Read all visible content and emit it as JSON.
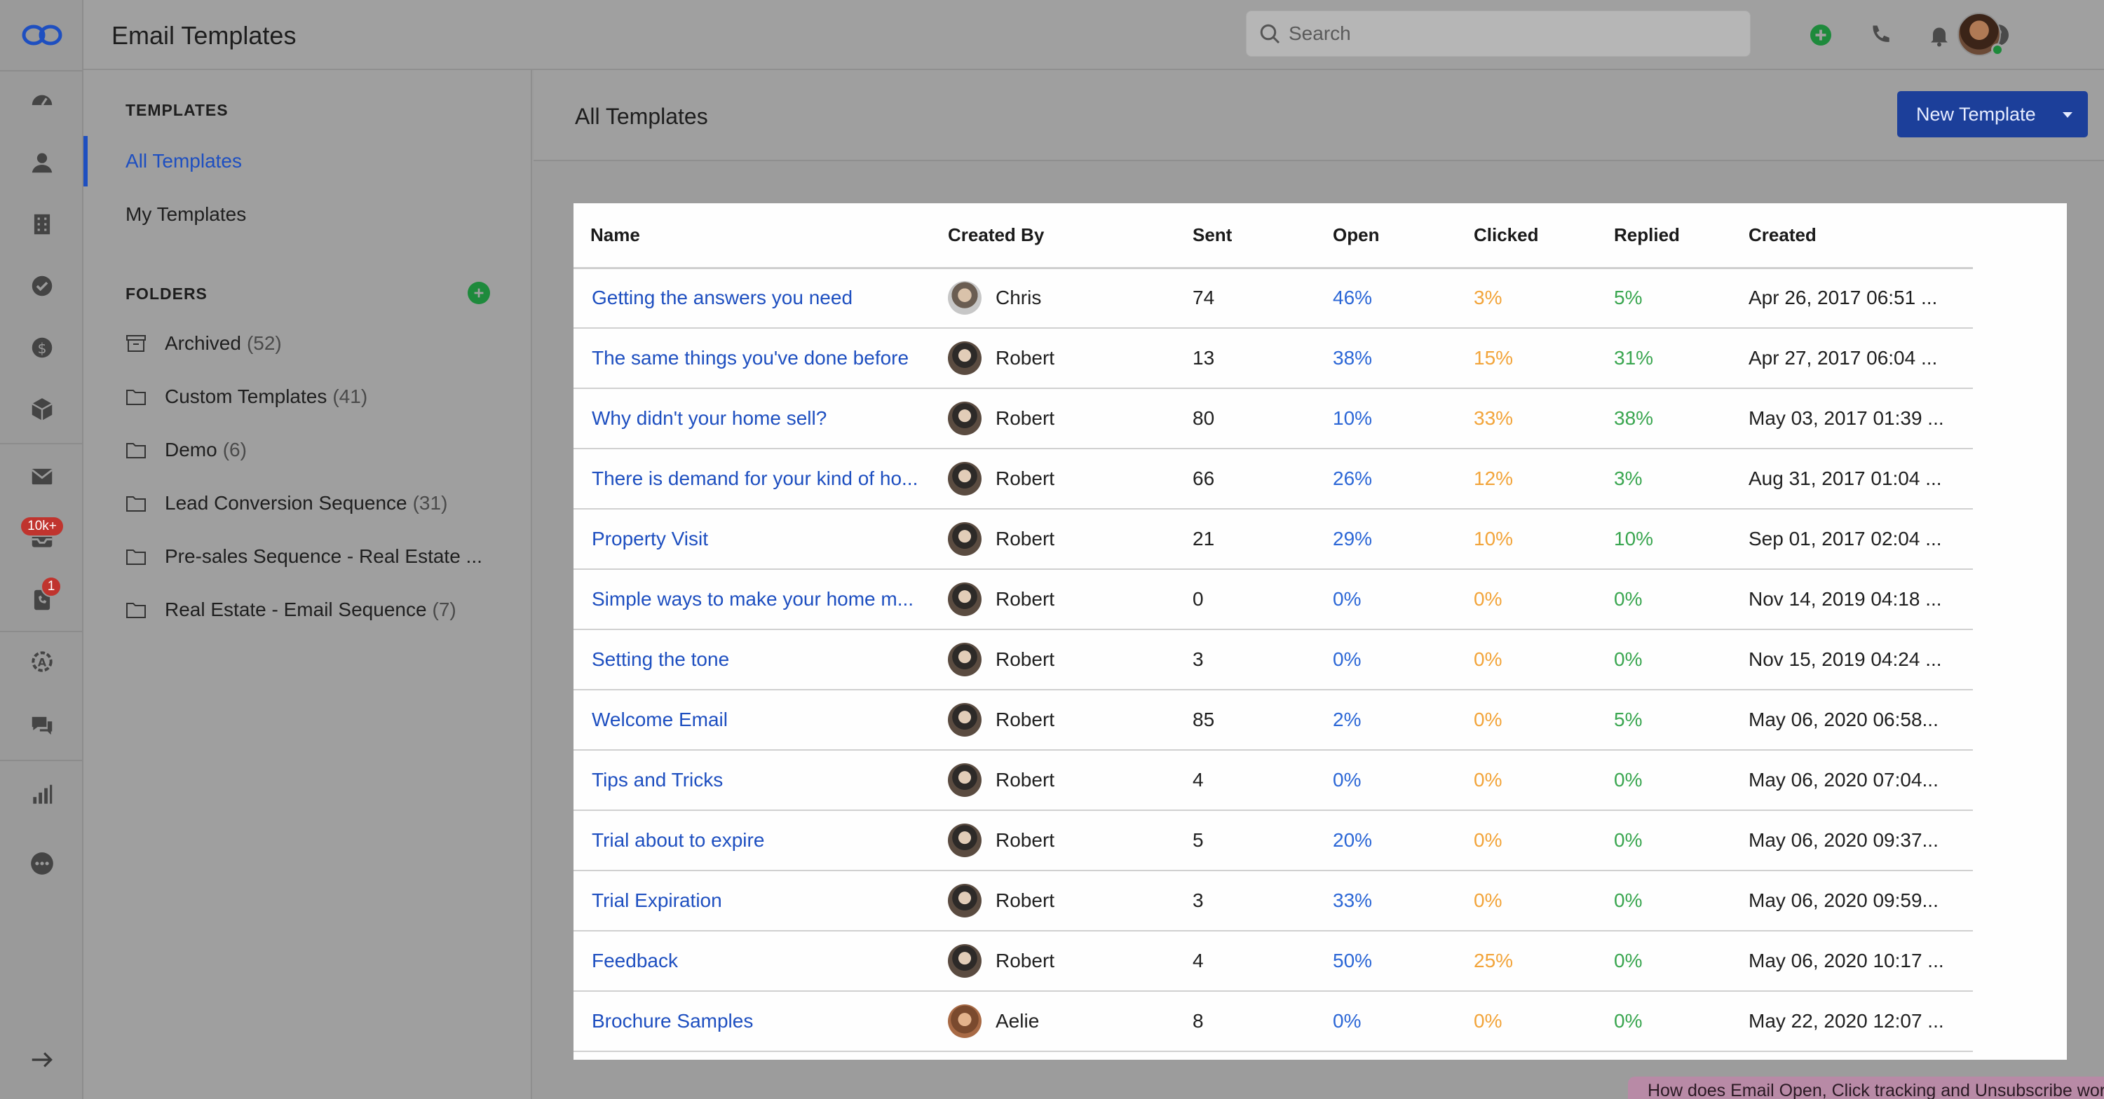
{
  "header": {
    "title": "Email Templates",
    "search_placeholder": "Search"
  },
  "rail": {
    "icons": [
      "logo-icon",
      "dashboard-icon",
      "contacts-icon",
      "companies-icon",
      "tasks-icon",
      "deals-icon",
      "products-icon",
      "email-icon",
      "inbox-icon",
      "phone-log-icon",
      "automation-icon",
      "chat-icon",
      "reports-icon",
      "more-icon",
      "expand-icon"
    ],
    "inbox_badge": "10k+",
    "phone_badge": "1"
  },
  "sidebar": {
    "templates_title": "TEMPLATES",
    "all_templates": "All Templates",
    "my_templates": "My Templates",
    "folders_title": "FOLDERS",
    "folders": [
      {
        "name": "Archived",
        "count": "(52)"
      },
      {
        "name": "Custom Templates",
        "count": "(41)"
      },
      {
        "name": "Demo",
        "count": "(6)"
      },
      {
        "name": "Lead Conversion Sequence",
        "count": "(31)"
      },
      {
        "name": "Pre-sales Sequence - Real Estate ...",
        "count": ""
      },
      {
        "name": "Real Estate - Email Sequence",
        "count": "(7)"
      }
    ]
  },
  "main": {
    "title": "All Templates",
    "new_button": "New Template",
    "columns": [
      "Name",
      "Created By",
      "Sent",
      "Open",
      "Clicked",
      "Replied",
      "Created"
    ],
    "rows": [
      {
        "name": "Getting the answers you need",
        "by": "Chris",
        "sent": "74",
        "open": "46%",
        "clicked": "3%",
        "replied": "5%",
        "created": "Apr 26, 2017 06:51 ..."
      },
      {
        "name": "The same things you've done before",
        "by": "Robert",
        "sent": "13",
        "open": "38%",
        "clicked": "15%",
        "replied": "31%",
        "created": "Apr 27, 2017 06:04 ..."
      },
      {
        "name": "Why didn't your home sell?",
        "by": "Robert",
        "sent": "80",
        "open": "10%",
        "clicked": "33%",
        "replied": "38%",
        "created": "May 03, 2017 01:39 ..."
      },
      {
        "name": "There is demand for your kind of ho...",
        "by": "Robert",
        "sent": "66",
        "open": "26%",
        "clicked": "12%",
        "replied": "3%",
        "created": "Aug 31, 2017 01:04 ..."
      },
      {
        "name": "Property Visit",
        "by": "Robert",
        "sent": "21",
        "open": "29%",
        "clicked": "10%",
        "replied": "10%",
        "created": "Sep 01, 2017 02:04 ..."
      },
      {
        "name": "Simple ways to make your home m...",
        "by": "Robert",
        "sent": "0",
        "open": "0%",
        "clicked": "0%",
        "replied": "0%",
        "created": "Nov 14, 2019 04:18 ..."
      },
      {
        "name": "Setting the tone",
        "by": "Robert",
        "sent": "3",
        "open": "0%",
        "clicked": "0%",
        "replied": "0%",
        "created": "Nov 15, 2019 04:24 ..."
      },
      {
        "name": "Welcome Email",
        "by": "Robert",
        "sent": "85",
        "open": "2%",
        "clicked": "0%",
        "replied": "5%",
        "created": "May 06, 2020 06:58..."
      },
      {
        "name": "Tips and Tricks",
        "by": "Robert",
        "sent": "4",
        "open": "0%",
        "clicked": "0%",
        "replied": "0%",
        "created": "May 06, 2020 07:04..."
      },
      {
        "name": "Trial about to expire",
        "by": "Robert",
        "sent": "5",
        "open": "20%",
        "clicked": "0%",
        "replied": "0%",
        "created": "May 06, 2020 09:37..."
      },
      {
        "name": "Trial Expiration",
        "by": "Robert",
        "sent": "3",
        "open": "33%",
        "clicked": "0%",
        "replied": "0%",
        "created": "May 06, 2020 09:59..."
      },
      {
        "name": "Feedback",
        "by": "Robert",
        "sent": "4",
        "open": "50%",
        "clicked": "25%",
        "replied": "0%",
        "created": "May 06, 2020 10:17 ..."
      },
      {
        "name": "Brochure Samples",
        "by": "Aelie",
        "sent": "8",
        "open": "0%",
        "clicked": "0%",
        "replied": "0%",
        "created": "May 22, 2020 12:07 ..."
      }
    ]
  },
  "help_banner": "How does Email Open, Click tracking and Unsubscribe work?",
  "colors": {
    "accent": "#1e4fc0",
    "open": "#2c67d6",
    "clicked": "#f2a43a",
    "replied": "#3aa650",
    "add": "#1e8a3c"
  }
}
